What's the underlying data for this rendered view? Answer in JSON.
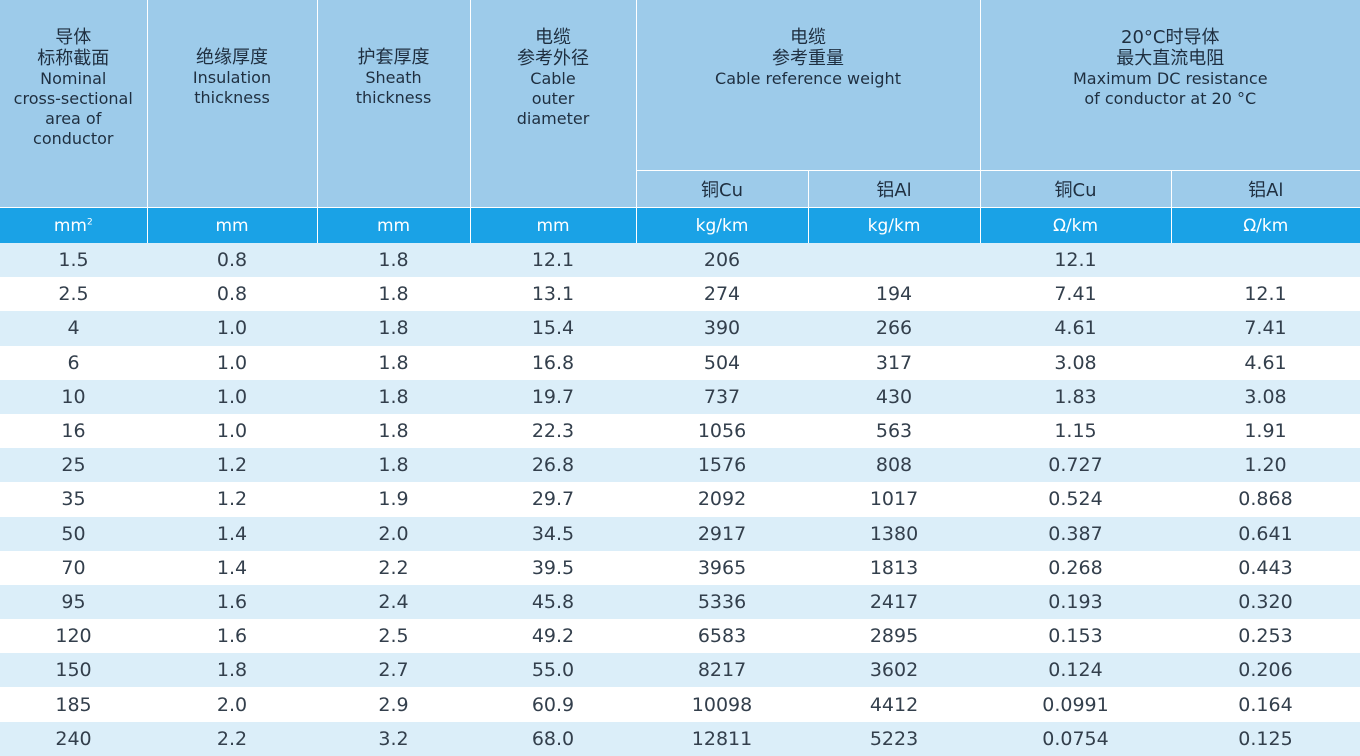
{
  "header": {
    "col1": {
      "zh1": "导体",
      "zh2": "标称截面",
      "en1": "Nominal",
      "en2": "cross-sectional",
      "en3": "area of",
      "en4": "conductor"
    },
    "col2": {
      "zh1": "绝缘厚度",
      "en1": "Insulation",
      "en2": "thickness"
    },
    "col3": {
      "zh1": "护套厚度",
      "en1": "Sheath",
      "en2": "thickness"
    },
    "col4": {
      "zh1": "电缆",
      "zh2": "参考外径",
      "en1": "Cable",
      "en2": "outer",
      "en3": "diameter"
    },
    "col5": {
      "zh1": "电缆",
      "zh2": "参考重量",
      "en1": "Cable reference weight"
    },
    "col6": {
      "zh1": "20°C时导体",
      "zh2": "最大直流电阻",
      "en1": "Maximum DC resistance",
      "en2": "of conductor at 20 °C"
    },
    "sub": {
      "cu_weight": "铜Cu",
      "al_weight": "铝Al",
      "cu_res": "铜Cu",
      "al_res": "铝Al"
    }
  },
  "units": {
    "area": "mm",
    "area_sup": "2",
    "insulation": "mm",
    "sheath": "mm",
    "diameter": "mm",
    "cu_weight": "kg/km",
    "al_weight": "kg/km",
    "cu_res": "Ω/km",
    "al_res": "Ω/km"
  },
  "rows": [
    {
      "area": "1.5",
      "insulation": "0.8",
      "sheath": "1.8",
      "diameter": "12.1",
      "cu_weight": "206",
      "al_weight": "",
      "cu_res": "12.1",
      "al_res": ""
    },
    {
      "area": "2.5",
      "insulation": "0.8",
      "sheath": "1.8",
      "diameter": "13.1",
      "cu_weight": "274",
      "al_weight": "194",
      "cu_res": "7.41",
      "al_res": "12.1"
    },
    {
      "area": "4",
      "insulation": "1.0",
      "sheath": "1.8",
      "diameter": "15.4",
      "cu_weight": "390",
      "al_weight": "266",
      "cu_res": "4.61",
      "al_res": "7.41"
    },
    {
      "area": "6",
      "insulation": "1.0",
      "sheath": "1.8",
      "diameter": "16.8",
      "cu_weight": "504",
      "al_weight": "317",
      "cu_res": "3.08",
      "al_res": "4.61"
    },
    {
      "area": "10",
      "insulation": "1.0",
      "sheath": "1.8",
      "diameter": "19.7",
      "cu_weight": "737",
      "al_weight": "430",
      "cu_res": "1.83",
      "al_res": "3.08"
    },
    {
      "area": "16",
      "insulation": "1.0",
      "sheath": "1.8",
      "diameter": "22.3",
      "cu_weight": "1056",
      "al_weight": "563",
      "cu_res": "1.15",
      "al_res": "1.91"
    },
    {
      "area": "25",
      "insulation": "1.2",
      "sheath": "1.8",
      "diameter": "26.8",
      "cu_weight": "1576",
      "al_weight": "808",
      "cu_res": "0.727",
      "al_res": "1.20"
    },
    {
      "area": "35",
      "insulation": "1.2",
      "sheath": "1.9",
      "diameter": "29.7",
      "cu_weight": "2092",
      "al_weight": "1017",
      "cu_res": "0.524",
      "al_res": "0.868"
    },
    {
      "area": "50",
      "insulation": "1.4",
      "sheath": "2.0",
      "diameter": "34.5",
      "cu_weight": "2917",
      "al_weight": "1380",
      "cu_res": "0.387",
      "al_res": "0.641"
    },
    {
      "area": "70",
      "insulation": "1.4",
      "sheath": "2.2",
      "diameter": "39.5",
      "cu_weight": "3965",
      "al_weight": "1813",
      "cu_res": "0.268",
      "al_res": "0.443"
    },
    {
      "area": "95",
      "insulation": "1.6",
      "sheath": "2.4",
      "diameter": "45.8",
      "cu_weight": "5336",
      "al_weight": "2417",
      "cu_res": "0.193",
      "al_res": "0.320"
    },
    {
      "area": "120",
      "insulation": "1.6",
      "sheath": "2.5",
      "diameter": "49.2",
      "cu_weight": "6583",
      "al_weight": "2895",
      "cu_res": "0.153",
      "al_res": "0.253"
    },
    {
      "area": "150",
      "insulation": "1.8",
      "sheath": "2.7",
      "diameter": "55.0",
      "cu_weight": "8217",
      "al_weight": "3602",
      "cu_res": "0.124",
      "al_res": "0.206"
    },
    {
      "area": "185",
      "insulation": "2.0",
      "sheath": "2.9",
      "diameter": "60.9",
      "cu_weight": "10098",
      "al_weight": "4412",
      "cu_res": "0.0991",
      "al_res": "0.164"
    },
    {
      "area": "240",
      "insulation": "2.2",
      "sheath": "3.2",
      "diameter": "68.0",
      "cu_weight": "12811",
      "al_weight": "5223",
      "cu_res": "0.0754",
      "al_res": "0.125"
    }
  ],
  "colors": {
    "header_bg": "#9dcbea",
    "units_bg": "#1aa2e6",
    "stripe": "#dbeef9"
  }
}
